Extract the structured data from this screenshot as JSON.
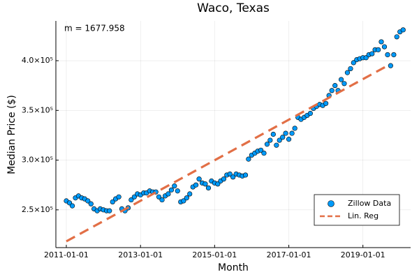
{
  "chart_data": {
    "type": "scatter",
    "title": "Waco, Texas",
    "xlabel": "Month",
    "ylabel": "Median Price ($)",
    "annotation": "m = 1677.958",
    "xlim": [
      "2010-09-20",
      "2020-04-15"
    ],
    "xticks": [
      "2011-01-01",
      "2013-01-01",
      "2015-01-01",
      "2017-01-01",
      "2019-01-01"
    ],
    "ylim": [
      212000,
      440000
    ],
    "yticks": [
      {
        "value": 250000,
        "label": "2.5×10⁵"
      },
      {
        "value": 300000,
        "label": "3.0×10⁵"
      },
      {
        "value": 350000,
        "label": "3.5×10⁵"
      },
      {
        "value": 400000,
        "label": "4.0×10⁵"
      }
    ],
    "grid": true,
    "legend": "bottom right",
    "series": [
      {
        "name": "Zillow Data",
        "type": "scatter",
        "color": "#009af9",
        "x": [
          "2011-01-01",
          "2011-02-01",
          "2011-03-01",
          "2011-04-01",
          "2011-05-01",
          "2011-06-01",
          "2011-07-01",
          "2011-08-01",
          "2011-09-01",
          "2011-10-01",
          "2011-11-01",
          "2011-12-01",
          "2012-01-01",
          "2012-02-01",
          "2012-03-01",
          "2012-04-01",
          "2012-05-01",
          "2012-06-01",
          "2012-07-01",
          "2012-08-01",
          "2012-09-01",
          "2012-10-01",
          "2012-11-01",
          "2012-12-01",
          "2013-01-01",
          "2013-02-01",
          "2013-03-01",
          "2013-04-01",
          "2013-05-01",
          "2013-06-01",
          "2013-07-01",
          "2013-08-01",
          "2013-09-01",
          "2013-10-01",
          "2013-11-01",
          "2013-12-01",
          "2014-01-01",
          "2014-02-01",
          "2014-03-01",
          "2014-04-01",
          "2014-05-01",
          "2014-06-01",
          "2014-07-01",
          "2014-08-01",
          "2014-09-01",
          "2014-10-01",
          "2014-11-01",
          "2014-12-01",
          "2015-01-01",
          "2015-02-01",
          "2015-03-01",
          "2015-04-01",
          "2015-05-01",
          "2015-06-01",
          "2015-07-01",
          "2015-08-01",
          "2015-09-01",
          "2015-10-01",
          "2015-11-01",
          "2015-12-01",
          "2016-01-01",
          "2016-02-01",
          "2016-03-01",
          "2016-04-01",
          "2016-05-01",
          "2016-06-01",
          "2016-07-01",
          "2016-08-01",
          "2016-09-01",
          "2016-10-01",
          "2016-11-01",
          "2016-12-01",
          "2017-01-01",
          "2017-02-01",
          "2017-03-01",
          "2017-04-01",
          "2017-05-01",
          "2017-06-01",
          "2017-07-01",
          "2017-08-01",
          "2017-09-01",
          "2017-10-01",
          "2017-11-01",
          "2017-12-01",
          "2018-01-01",
          "2018-02-01",
          "2018-03-01",
          "2018-04-01",
          "2018-05-01",
          "2018-06-01",
          "2018-07-01",
          "2018-08-01",
          "2018-09-01",
          "2018-10-01",
          "2018-11-01",
          "2018-12-01",
          "2019-01-01",
          "2019-02-01",
          "2019-03-01",
          "2019-04-01",
          "2019-05-01",
          "2019-06-01",
          "2019-07-01",
          "2019-08-01",
          "2019-09-01",
          "2019-10-01",
          "2019-11-01",
          "2019-12-01",
          "2020-01-01",
          "2020-02-01"
        ],
        "values": [
          259000,
          257000,
          254000,
          262000,
          264000,
          262000,
          261000,
          259000,
          256000,
          251000,
          249000,
          251000,
          250000,
          249000,
          249000,
          258000,
          261000,
          263000,
          251000,
          249000,
          252000,
          260000,
          263000,
          266000,
          265000,
          267000,
          267000,
          269000,
          268000,
          268000,
          263000,
          260000,
          264000,
          266000,
          270000,
          274000,
          269000,
          258000,
          259000,
          262000,
          266000,
          273000,
          275000,
          281000,
          277000,
          276000,
          272000,
          279000,
          277000,
          276000,
          279000,
          281000,
          285000,
          286000,
          283000,
          286000,
          285000,
          284000,
          285000,
          301000,
          305000,
          307000,
          309000,
          310000,
          307000,
          316000,
          320000,
          326000,
          315000,
          320000,
          323000,
          327000,
          321000,
          327000,
          332000,
          343000,
          341000,
          343000,
          345000,
          347000,
          352000,
          354000,
          356000,
          355000,
          357000,
          365000,
          370000,
          375000,
          370000,
          381000,
          377000,
          388000,
          392000,
          398000,
          401000,
          402000,
          403000,
          403000,
          406000,
          407000,
          411000,
          411000,
          419000,
          414000,
          406000,
          395000,
          406000,
          424000,
          429000,
          431000
        ]
      },
      {
        "name": "Lin. Reg",
        "type": "line",
        "color": "#e26f46",
        "x": [
          "2011-01-01",
          "2019-09-01"
        ],
        "values": [
          218300,
          395000
        ]
      }
    ]
  }
}
